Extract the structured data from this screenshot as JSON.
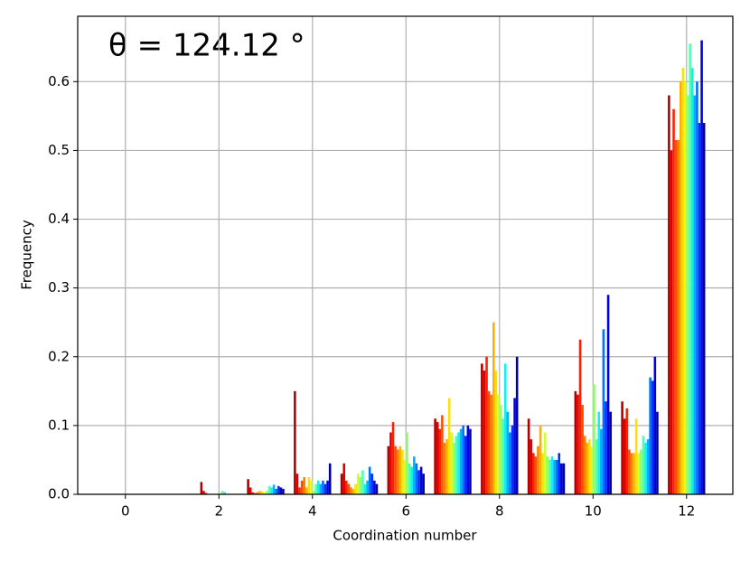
{
  "chart_data": {
    "type": "grouped-bar",
    "title": "θ = 124.12 °",
    "x_label": "Coordination number",
    "y_label": "Frequency",
    "x": [
      0,
      1,
      2,
      3,
      4,
      5,
      6,
      7,
      8,
      9,
      10,
      11,
      12
    ],
    "xlim": [
      -1.02,
      12.99
    ],
    "xticks": [
      0,
      2,
      4,
      6,
      8,
      10,
      12
    ],
    "ylim": [
      0,
      0.695
    ],
    "yticks": [
      {
        "value": 0,
        "label": "0.0"
      },
      0.1,
      0.2,
      0.3,
      0.4,
      0.5,
      0.6
    ],
    "grid": true,
    "series": [
      {
        "color": "#b00000",
        "values": [
          0,
          0,
          0.018,
          0.022,
          0.15,
          0.03,
          0.07,
          0.11,
          0.19,
          0.11,
          0.15,
          0.135,
          0.58
        ]
      },
      {
        "color": "#e00000",
        "values": [
          0,
          0,
          0.005,
          0.01,
          0.03,
          0.045,
          0.09,
          0.105,
          0.18,
          0.08,
          0.145,
          0.11,
          0.5
        ]
      },
      {
        "color": "#ff2000",
        "values": [
          0,
          0,
          0.002,
          0.003,
          0.01,
          0.02,
          0.105,
          0.095,
          0.2,
          0.06,
          0.225,
          0.125,
          0.56
        ]
      },
      {
        "color": "#ff5000",
        "values": [
          0,
          0,
          0,
          0.002,
          0.02,
          0.015,
          0.07,
          0.115,
          0.15,
          0.055,
          0.13,
          0.065,
          0.515
        ]
      },
      {
        "color": "#ff8000",
        "values": [
          0,
          0,
          0,
          0.003,
          0.025,
          0.01,
          0.065,
          0.075,
          0.145,
          0.07,
          0.085,
          0.06,
          0.515
        ]
      },
      {
        "color": "#ffb000",
        "values": [
          0,
          0,
          0,
          0.005,
          0.01,
          0.008,
          0.07,
          0.08,
          0.25,
          0.1,
          0.075,
          0.06,
          0.6
        ]
      },
      {
        "color": "#ffe000",
        "values": [
          0,
          0,
          0,
          0.004,
          0.025,
          0.015,
          0.065,
          0.14,
          0.18,
          0.06,
          0.08,
          0.11,
          0.62
        ]
      },
      {
        "color": "#d0ff30",
        "values": [
          0,
          0,
          0,
          0.003,
          0.02,
          0.03,
          0.05,
          0.09,
          0.145,
          0.09,
          0.07,
          0.06,
          0.6
        ]
      },
      {
        "color": "#90ff70",
        "values": [
          0,
          0,
          0.002,
          0.005,
          0.005,
          0.025,
          0.09,
          0.075,
          0.13,
          0.055,
          0.16,
          0.065,
          0.58
        ]
      },
      {
        "color": "#50ffb0",
        "values": [
          0,
          0,
          0.005,
          0.012,
          0.015,
          0.035,
          0.045,
          0.085,
          0.11,
          0.05,
          0.08,
          0.085,
          0.655
        ]
      },
      {
        "color": "#10f0f0",
        "values": [
          0,
          0,
          0.003,
          0.01,
          0.02,
          0.015,
          0.04,
          0.09,
          0.19,
          0.055,
          0.12,
          0.075,
          0.62
        ]
      },
      {
        "color": "#00b0ff",
        "values": [
          0,
          0,
          0,
          0.014,
          0.015,
          0.02,
          0.055,
          0.095,
          0.12,
          0.05,
          0.095,
          0.08,
          0.58
        ]
      },
      {
        "color": "#0070ff",
        "values": [
          0,
          0,
          0,
          0.008,
          0.02,
          0.04,
          0.045,
          0.1,
          0.09,
          0.05,
          0.24,
          0.17,
          0.6
        ]
      },
      {
        "color": "#0030ff",
        "values": [
          0,
          0,
          0,
          0.012,
          0.015,
          0.03,
          0.035,
          0.085,
          0.1,
          0.06,
          0.135,
          0.165,
          0.54
        ]
      },
      {
        "color": "#0000e0",
        "values": [
          0,
          0,
          0,
          0.01,
          0.02,
          0.02,
          0.04,
          0.1,
          0.14,
          0.045,
          0.29,
          0.2,
          0.66
        ]
      },
      {
        "color": "#0000a0",
        "values": [
          0,
          0,
          0,
          0.008,
          0.045,
          0.015,
          0.03,
          0.095,
          0.2,
          0.045,
          0.12,
          0.12,
          0.54
        ]
      }
    ]
  }
}
